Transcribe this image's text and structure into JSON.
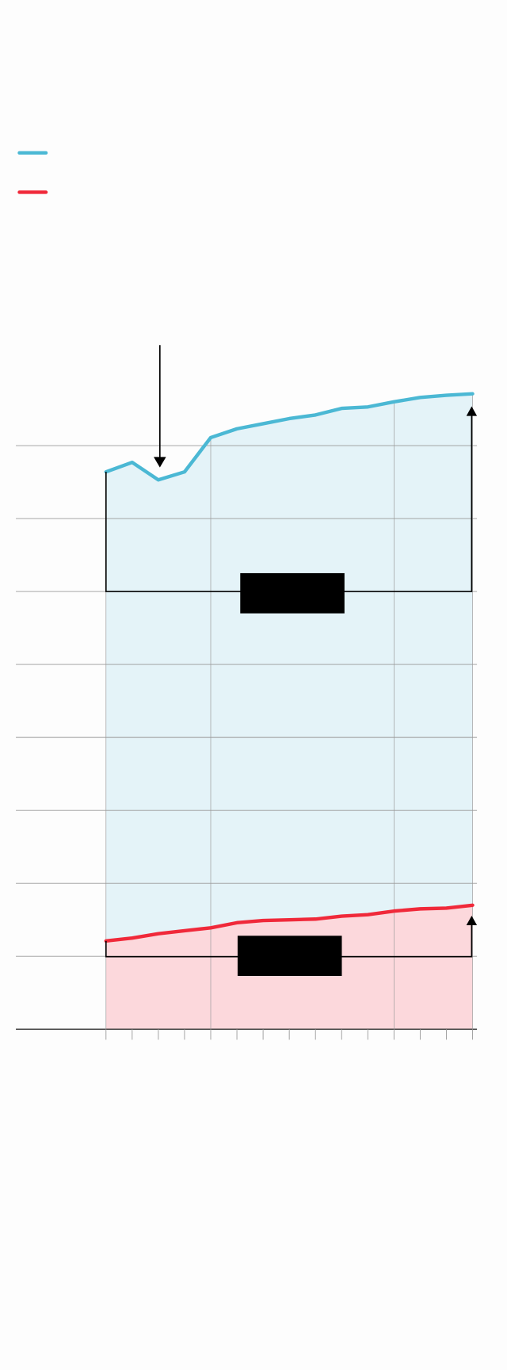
{
  "chart_data": {
    "type": "area",
    "categories": [
      null,
      null,
      null,
      null,
      null,
      null,
      null,
      null,
      null,
      null,
      null,
      null,
      null,
      null,
      null
    ],
    "series": [
      {
        "color": "#4bb8d4",
        "area_color": "#e4f3f8",
        "values": [
          7.64,
          7.77,
          7.53,
          7.64,
          8.11,
          8.23,
          8.3,
          8.37,
          8.42,
          8.51,
          8.53,
          8.6,
          8.66,
          8.69,
          8.71
        ]
      },
      {
        "color": "#f0293a",
        "area_color": "#fcd8dc",
        "values": [
          1.21,
          1.25,
          1.31,
          1.35,
          1.39,
          1.46,
          1.49,
          1.5,
          1.51,
          1.55,
          1.57,
          1.62,
          1.65,
          1.66,
          1.7
        ]
      }
    ],
    "ylim": [
      0,
      9.5
    ],
    "yticks": [
      0,
      1,
      2,
      3,
      4,
      5,
      6,
      7,
      8
    ],
    "grid": true
  }
}
